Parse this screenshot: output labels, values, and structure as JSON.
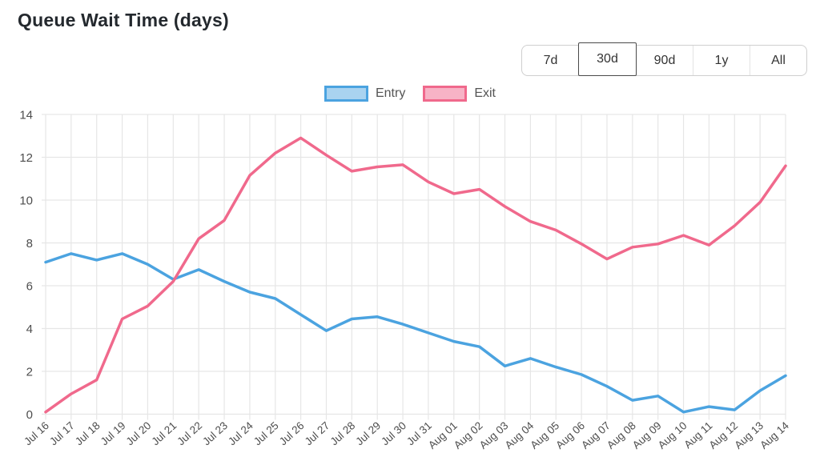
{
  "header": {
    "title": "Queue Wait Time (days)"
  },
  "toolbar": {
    "range_buttons": [
      {
        "label": "7d",
        "selected": false
      },
      {
        "label": "30d",
        "selected": true
      },
      {
        "label": "90d",
        "selected": false
      },
      {
        "label": "1y",
        "selected": false
      },
      {
        "label": "All",
        "selected": false
      }
    ]
  },
  "colors": {
    "entry_line": "#4BA3E0",
    "entry_fill": "#A9D3F0",
    "exit_line": "#F0698C",
    "exit_fill": "#F7B3C6",
    "grid": "#E6E6E6",
    "tick_text": "#4D4D4D"
  },
  "chart_data": {
    "type": "line",
    "title": "Queue Wait Time (days)",
    "xlabel": "",
    "ylabel": "",
    "ylim": [
      0,
      14
    ],
    "ytick_step": 2,
    "grid": true,
    "legend_position": "top",
    "x": [
      "Jul 16",
      "Jul 17",
      "Jul 18",
      "Jul 19",
      "Jul 20",
      "Jul 21",
      "Jul 22",
      "Jul 23",
      "Jul 24",
      "Jul 25",
      "Jul 26",
      "Jul 27",
      "Jul 28",
      "Jul 29",
      "Jul 30",
      "Jul 31",
      "Aug 01",
      "Aug 02",
      "Aug 03",
      "Aug 04",
      "Aug 05",
      "Aug 06",
      "Aug 07",
      "Aug 08",
      "Aug 09",
      "Aug 10",
      "Aug 11",
      "Aug 12",
      "Aug 13",
      "Aug 14"
    ],
    "series": [
      {
        "name": "Entry",
        "color": "#4BA3E0",
        "fill_color": "#A9D3F0",
        "values": [
          7.1,
          7.5,
          7.2,
          7.5,
          7.0,
          6.3,
          6.75,
          6.2,
          5.7,
          5.4,
          4.65,
          3.9,
          4.45,
          4.55,
          4.2,
          3.8,
          3.4,
          3.15,
          2.25,
          2.6,
          2.2,
          1.85,
          1.3,
          0.65,
          0.85,
          0.1,
          0.35,
          0.2,
          1.1,
          1.8
        ]
      },
      {
        "name": "Exit",
        "color": "#F0698C",
        "fill_color": "#F7B3C6",
        "values": [
          0.1,
          0.95,
          1.6,
          4.45,
          5.05,
          6.2,
          8.2,
          9.05,
          11.15,
          12.2,
          12.9,
          12.1,
          11.35,
          11.55,
          11.65,
          10.85,
          10.3,
          10.5,
          9.7,
          9.0,
          8.6,
          7.95,
          7.25,
          7.8,
          7.95,
          8.35,
          7.9,
          8.8,
          9.9,
          11.6
        ]
      }
    ]
  }
}
